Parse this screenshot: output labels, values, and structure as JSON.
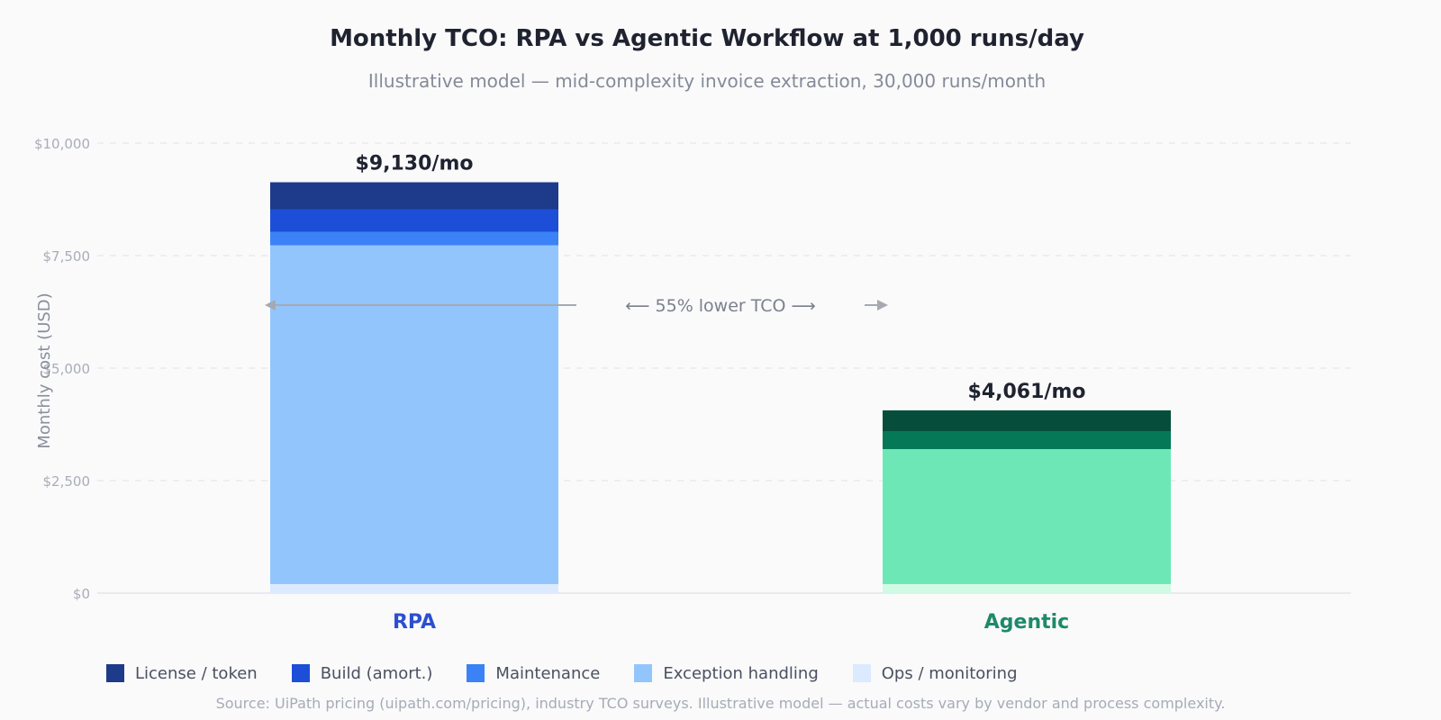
{
  "chart_data": {
    "type": "bar",
    "stacked": true,
    "title": "Monthly TCO: RPA vs Agentic Workflow at 1,000 runs/day",
    "subtitle": "Illustrative model — mid-complexity invoice extraction, 30,000 runs/month",
    "ylabel": "Monthly cost (USD)",
    "ylim": [
      0,
      10000
    ],
    "yticks": [
      {
        "value": 0,
        "label": "$0"
      },
      {
        "value": 2500,
        "label": "$2,500"
      },
      {
        "value": 5000,
        "label": "$5,000"
      },
      {
        "value": 7500,
        "label": "$7,500"
      },
      {
        "value": 10000,
        "label": "$10,000"
      }
    ],
    "grid": true,
    "legend_position": "bottom-left",
    "categories": [
      "RPA",
      "Agentic"
    ],
    "category_colors": [
      "#2c4fd0",
      "#1d8a68"
    ],
    "totals": [
      9130,
      4061
    ],
    "total_labels": [
      "$9,130/mo",
      "$4,061/mo"
    ],
    "series": [
      {
        "name": "Ops / monitoring",
        "values": [
          200,
          200
        ],
        "colors": [
          "#dbeafe",
          "#d1fae5"
        ]
      },
      {
        "name": "Exception handling",
        "values": [
          7530,
          3000
        ],
        "colors": [
          "#93c5fd",
          "#6ee7b7"
        ]
      },
      {
        "name": "Maintenance",
        "values": [
          300,
          0
        ],
        "colors": [
          "#3b82f6",
          "#34d399"
        ]
      },
      {
        "name": "Build (amort.)",
        "values": [
          500,
          400
        ],
        "colors": [
          "#1d4ed8",
          "#047857"
        ]
      },
      {
        "name": "License / token",
        "values": [
          600,
          461
        ],
        "colors": [
          "#1e3a8a",
          "#064e3b"
        ]
      }
    ],
    "legend": [
      {
        "name": "License / token",
        "color": "#1e3a8a"
      },
      {
        "name": "Build (amort.)",
        "color": "#1d4ed8"
      },
      {
        "name": "Maintenance",
        "color": "#3b82f6"
      },
      {
        "name": "Exception handling",
        "color": "#93c5fd"
      },
      {
        "name": "Ops / monitoring",
        "color": "#dbeafe"
      }
    ],
    "annotation": {
      "text": "⟵ 55% lower TCO ⟶",
      "y": 6400
    },
    "source": "Source: UiPath pricing (uipath.com/pricing), industry TCO surveys. Illustrative model — actual costs vary by vendor and process complexity."
  }
}
